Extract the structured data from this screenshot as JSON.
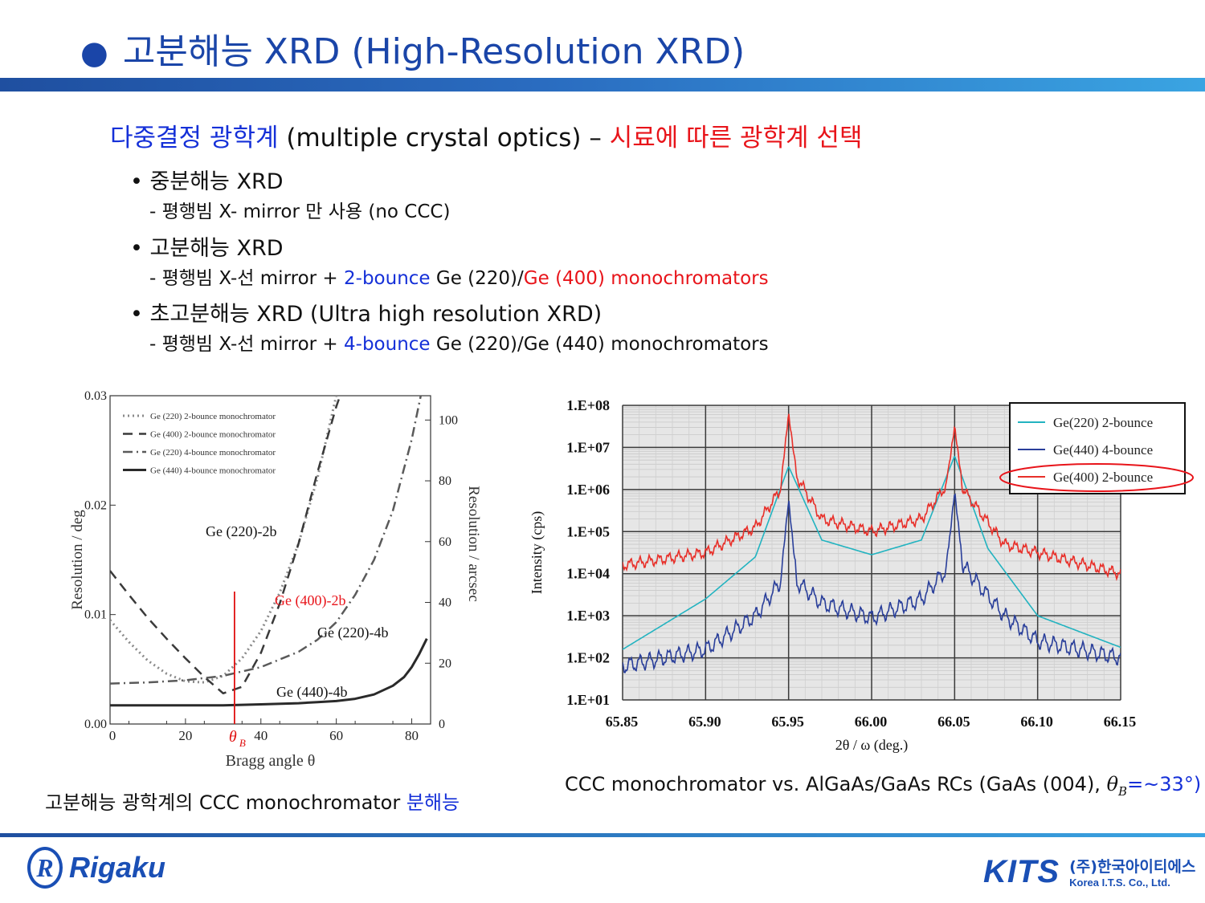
{
  "title": {
    "bullet": "●",
    "text": "고분해능 XRD (High-Resolution XRD)"
  },
  "subhead": {
    "part1": "다중결정 광학계",
    "part2": " (multiple crystal optics) – ",
    "part3": "시료에 따른 광학계 선택"
  },
  "items": [
    {
      "bullet": "• 중분해능 XRD",
      "sub": [
        {
          "text": "- 평행빔 X- mirror 만 사용 (no CCC)",
          "color": ""
        }
      ]
    },
    {
      "bullet": "• 고분해능 XRD",
      "sub": [
        {
          "text": "- 평행빔 X-선 mirror + ",
          "color": ""
        },
        {
          "text": "2-bounce",
          "color": "#1530d8"
        },
        {
          "text": " Ge (220)/",
          "color": ""
        },
        {
          "text": "Ge (400) monochromators",
          "color": "#e8141a"
        }
      ]
    },
    {
      "bullet": "• 초고분해능 XRD (Ultra high resolution XRD)",
      "sub": [
        {
          "text": "- 평행빔 X-선 mirror + ",
          "color": ""
        },
        {
          "text": "4-bounce",
          "color": "#1530d8"
        },
        {
          "text": " Ge (220)/Ge (440) monochromators",
          "color": ""
        }
      ]
    }
  ],
  "captions": {
    "left_a": "고분해능 광학계의 CCC monochromator ",
    "left_b": "분해능",
    "right_a": "CCC monochromator vs. AlGaAs/GaAs RCs (GaAs (004), ",
    "right_theta": "θ",
    "right_sub": "B",
    "right_b": "=~33°)"
  },
  "logos": {
    "rigaku_mark": "R",
    "rigaku": "Rigaku",
    "kits": "KITS",
    "kits_kor": "(주)한국아이티에스",
    "kits_eng": "Korea I.T.S. Co., Ltd."
  },
  "chart_data": [
    {
      "type": "line",
      "xlabel": "Bragg angle θ",
      "ylabel": "Resolution / deg",
      "y2label": "Resolution / arcsec",
      "xlim": [
        0,
        85
      ],
      "ylim": [
        0,
        0.03
      ],
      "y2lim": [
        0,
        108
      ],
      "xticks": [
        "0",
        "20",
        "40",
        "60",
        "80"
      ],
      "yticks": [
        "0.00",
        "0.01",
        "0.02",
        "0.03"
      ],
      "y2ticks": [
        "0",
        "20",
        "40",
        "60",
        "80",
        "100"
      ],
      "legend_position": "top-left",
      "colors": {
        "g220_2b": "#8a8a8a",
        "g400_2b": "#3a3a3a",
        "g220_4b": "#5a5a5a",
        "g440_4b": "#2a2a2a",
        "marker": "#e01010"
      },
      "series": [
        {
          "name": "Ge (220) 2-bounce monochromator",
          "label": "Ge (220)-2b",
          "x": [
            0,
            5,
            10,
            15,
            20,
            25,
            30,
            35,
            40,
            45,
            50,
            55,
            60,
            65
          ],
          "y": [
            0.0095,
            0.0075,
            0.0058,
            0.0046,
            0.0039,
            0.0038,
            0.0044,
            0.006,
            0.0085,
            0.012,
            0.0165,
            0.0225,
            0.03,
            0.039
          ]
        },
        {
          "name": "Ge (400) 2-bounce monochromator",
          "label": "Ge (400)-2b",
          "color": "#e8141a",
          "x": [
            0,
            5,
            10,
            15,
            20,
            25,
            30,
            35,
            40,
            45,
            50,
            55,
            60,
            64
          ],
          "y": [
            0.014,
            0.0118,
            0.0097,
            0.0078,
            0.006,
            0.0043,
            0.0028,
            0.0034,
            0.0065,
            0.011,
            0.0165,
            0.023,
            0.029,
            0.033
          ]
        },
        {
          "name": "Ge (220) 4-bounce monochromator",
          "label": "Ge (220)-4b",
          "x": [
            0,
            10,
            20,
            30,
            40,
            50,
            55,
            60,
            65,
            70,
            75,
            80,
            83
          ],
          "y": [
            0.0037,
            0.0038,
            0.004,
            0.0044,
            0.0052,
            0.0066,
            0.0077,
            0.0093,
            0.0118,
            0.015,
            0.0195,
            0.026,
            0.031
          ]
        },
        {
          "name": "Ge (440) 4-bounce monochromator",
          "label": "Ge (440)-4b",
          "x": [
            0,
            10,
            20,
            30,
            40,
            50,
            55,
            60,
            65,
            70,
            75,
            78,
            80,
            82,
            84
          ],
          "y": [
            0.0017,
            0.0017,
            0.0017,
            0.0017,
            0.0018,
            0.0019,
            0.002,
            0.0021,
            0.0023,
            0.0027,
            0.0035,
            0.0043,
            0.0052,
            0.0064,
            0.0078
          ]
        }
      ],
      "annotations": [
        {
          "text": "θ",
          "sub": "B",
          "x": 33
        }
      ]
    },
    {
      "type": "line",
      "xlabel": "2θ / ω (deg.)",
      "ylabel": "Intensity (cps)",
      "xlim": [
        65.85,
        66.15
      ],
      "xticks": [
        "65.85",
        "65.90",
        "65.95",
        "66.00",
        "66.05",
        "66.10",
        "66.15"
      ],
      "yticks": [
        "1.E+01",
        "1.E+02",
        "1.E+03",
        "1.E+04",
        "1.E+05",
        "1.E+06",
        "1.E+07",
        "1.E+08"
      ],
      "ylim": [
        10,
        100000000
      ],
      "scale_y": "log",
      "grid": true,
      "legend_position": "top-right",
      "colors": {
        "plot_bg": "#e6e6e6",
        "highlight": "#e8141a"
      },
      "series": [
        {
          "name": "Ge(220) 2-bounce",
          "color": "#22b3c0",
          "base": [
            [
              65.85,
              2.2
            ],
            [
              65.9,
              3.4
            ],
            [
              65.93,
              4.4
            ],
            [
              65.95,
              6.55
            ],
            [
              65.97,
              4.8
            ],
            [
              66.0,
              4.45
            ],
            [
              66.03,
              4.8
            ],
            [
              66.05,
              6.8
            ],
            [
              66.07,
              4.6
            ],
            [
              66.1,
              3.0
            ],
            [
              66.15,
              2.25
            ]
          ],
          "osc": 0.0
        },
        {
          "name": "Ge(440) 4-bounce",
          "color": "#2a3f9a",
          "base": [
            [
              65.85,
              1.8
            ],
            [
              65.9,
              2.2
            ],
            [
              65.93,
              3.0
            ],
            [
              65.945,
              3.8
            ],
            [
              65.95,
              5.75
            ],
            [
              65.955,
              3.8
            ],
            [
              65.97,
              3.3
            ],
            [
              66.0,
              2.95
            ],
            [
              66.03,
              3.4
            ],
            [
              66.045,
              4.1
            ],
            [
              66.05,
              5.95
            ],
            [
              66.055,
              4.2
            ],
            [
              66.08,
              3.0
            ],
            [
              66.1,
              2.4
            ],
            [
              66.15,
              2.0
            ]
          ],
          "osc": 0.16
        },
        {
          "name": "Ge(400) 2-bounce",
          "color": "#e8302a",
          "highlight": true,
          "base": [
            [
              65.85,
              4.2
            ],
            [
              65.9,
              4.5
            ],
            [
              65.93,
              5.1
            ],
            [
              65.945,
              6.0
            ],
            [
              65.95,
              7.8
            ],
            [
              65.955,
              6.3
            ],
            [
              65.97,
              5.3
            ],
            [
              66.0,
              5.0
            ],
            [
              66.03,
              5.3
            ],
            [
              66.045,
              6.1
            ],
            [
              66.05,
              7.5
            ],
            [
              66.055,
              6.0
            ],
            [
              66.08,
              4.7
            ],
            [
              66.1,
              4.5
            ],
            [
              66.15,
              4.0
            ]
          ],
          "osc": 0.1
        }
      ]
    }
  ]
}
